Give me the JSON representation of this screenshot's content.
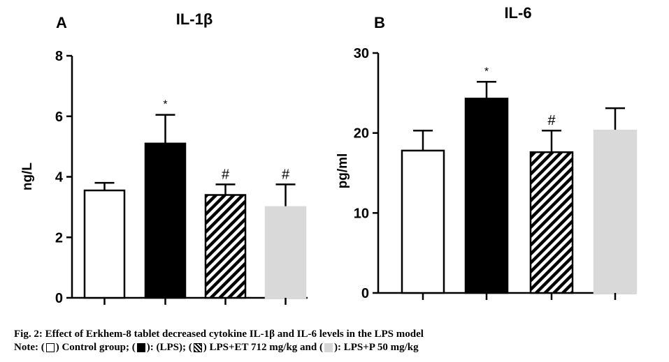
{
  "colors": {
    "control": "#ffffff",
    "lps": "#000000",
    "et": "hatched black/white",
    "p": "#d9d9d9",
    "axis": "#000000"
  },
  "chart_data": [
    {
      "type": "bar",
      "panel_label": "A",
      "title": "IL-1β",
      "ylabel": "ng/L",
      "ylim": [
        0,
        8
      ],
      "yticks": [
        0,
        2,
        4,
        6,
        8
      ],
      "categories": [
        "Control group",
        "LPS",
        "LPS+ET 712 mg/kg",
        "LPS+P 50 mg/kg"
      ],
      "values": [
        3.55,
        5.1,
        3.4,
        3.0
      ],
      "errors": [
        0.25,
        0.95,
        0.35,
        0.75
      ],
      "annotations": [
        "",
        "*",
        "#",
        "#"
      ]
    },
    {
      "type": "bar",
      "panel_label": "B",
      "title": "IL-6",
      "ylabel": "pg/ml",
      "ylim": [
        0,
        30
      ],
      "yticks": [
        0,
        10,
        20,
        30
      ],
      "categories": [
        "Control group",
        "LPS",
        "LPS+ET 712 mg/kg",
        "LPS+P 50 mg/kg"
      ],
      "values": [
        17.8,
        24.3,
        17.6,
        20.3
      ],
      "errors": [
        2.5,
        2.1,
        2.7,
        2.8
      ],
      "annotations": [
        "",
        "*",
        "#",
        ""
      ]
    }
  ],
  "caption": {
    "title": "Fig. 2: Effect of Erkhem-8 tablet decreased cytokine IL-1β and IL-6 levels in the LPS model",
    "note_prefix": "Note: (",
    "note_control": ") Control group; (",
    "note_lps": "): (LPS); (",
    "note_et": ") LPS+ET 712 mg/kg and (",
    "note_p": "): LPS+P 50 mg/kg"
  }
}
